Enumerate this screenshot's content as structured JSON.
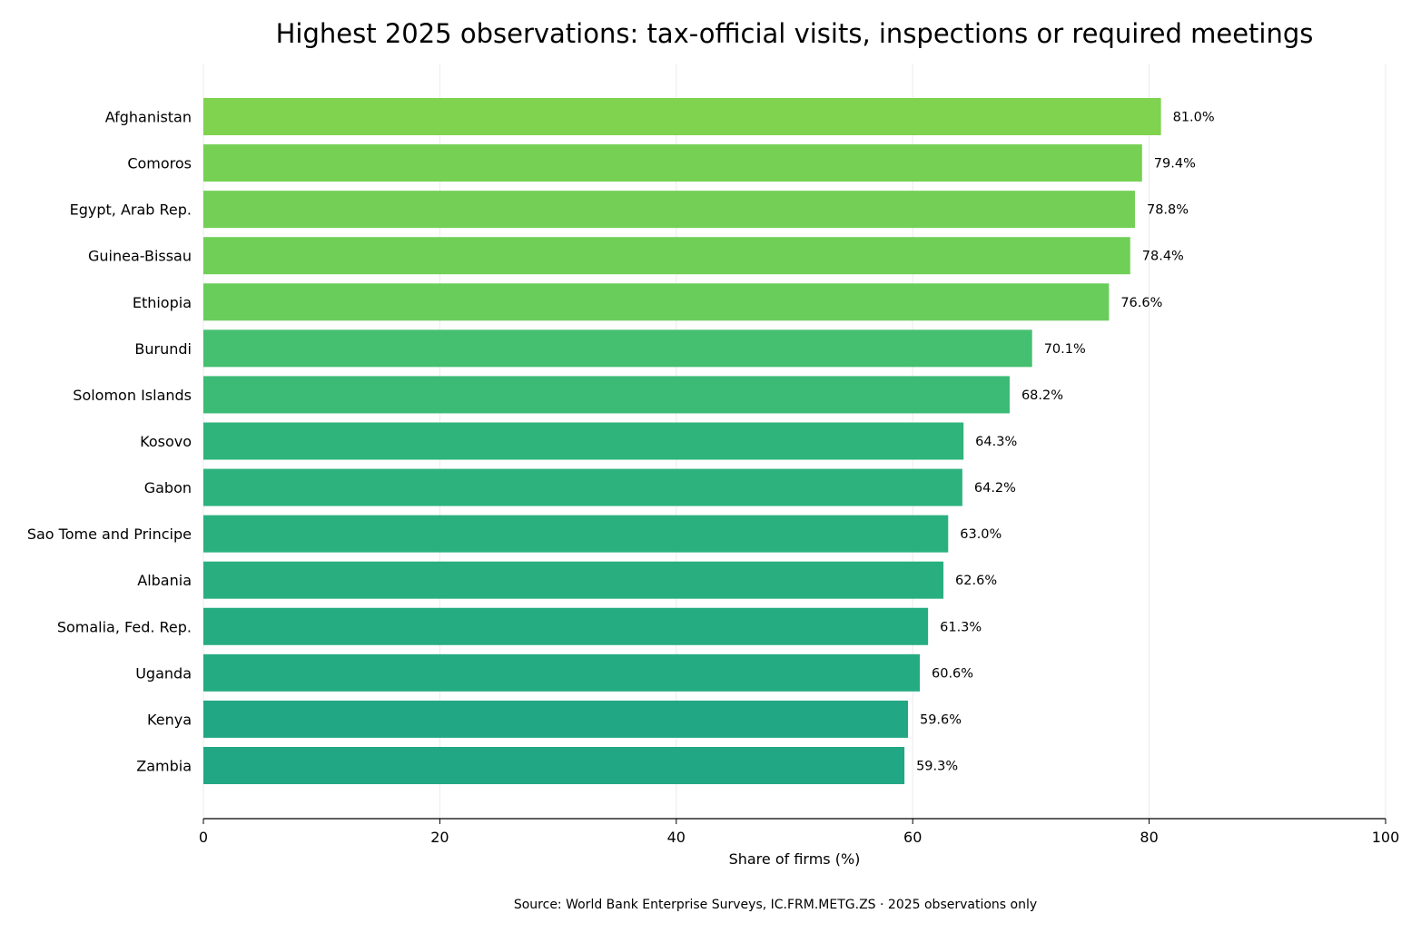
{
  "chart_data": {
    "type": "bar",
    "orientation": "horizontal",
    "title": "Highest 2025 observations: tax-official visits, inspections or required meetings",
    "xlabel": "Share of firms (%)",
    "ylabel": "",
    "xlim": [
      0,
      100
    ],
    "xticks": [
      "0",
      "20",
      "40",
      "60",
      "80",
      "100"
    ],
    "grid": "vertical",
    "legend": "none",
    "categories": [
      "Afghanistan",
      "Comoros",
      "Egypt, Arab Rep.",
      "Guinea-Bissau",
      "Ethiopia",
      "Burundi",
      "Solomon Islands",
      "Kosovo",
      "Gabon",
      "Sao Tome and Principe",
      "Albania",
      "Somalia, Fed. Rep.",
      "Uganda",
      "Kenya",
      "Zambia"
    ],
    "values": [
      81.0,
      79.4,
      78.8,
      78.4,
      76.6,
      70.1,
      68.2,
      64.3,
      64.2,
      63.0,
      62.6,
      61.3,
      60.6,
      59.6,
      59.3
    ],
    "data_labels": [
      "81.0%",
      "79.4%",
      "78.8%",
      "78.4%",
      "76.6%",
      "70.1%",
      "68.2%",
      "64.3%",
      "64.2%",
      "63.0%",
      "62.6%",
      "61.3%",
      "60.6%",
      "59.6%",
      "59.3%"
    ],
    "bar_colors": [
      "#7fd34e",
      "#76d054",
      "#73cf56",
      "#70cf57",
      "#68cd5b",
      "#45bf70",
      "#3bbb75",
      "#2fb47c",
      "#2db27d",
      "#2ab07f",
      "#29af7f",
      "#26ac81",
      "#25ab82",
      "#22a785",
      "#22a785"
    ],
    "source": "Source: World Bank Enterprise Surveys, IC.FRM.METG.ZS · 2025 observations only"
  }
}
